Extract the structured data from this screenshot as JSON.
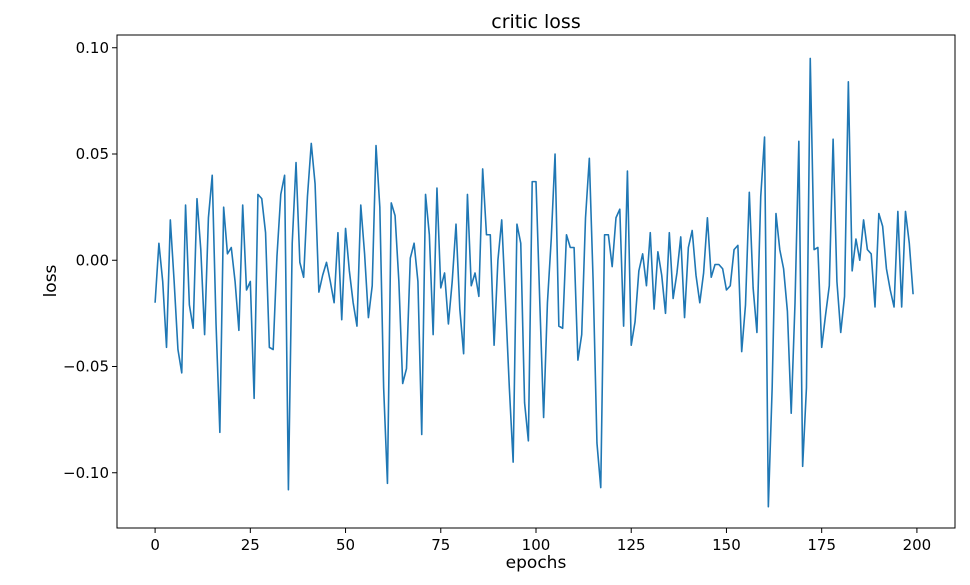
{
  "chart_data": {
    "type": "line",
    "title": "critic loss",
    "xlabel": "epochs",
    "ylabel": "loss",
    "xlim": [
      -10,
      210
    ],
    "ylim": [
      -0.126,
      0.106
    ],
    "grid": false,
    "x_ticks": [
      0,
      25,
      50,
      75,
      100,
      125,
      150,
      175,
      200
    ],
    "y_ticks": [
      -0.1,
      -0.05,
      0.0,
      0.05,
      0.1
    ],
    "x_tick_labels": [
      "0",
      "25",
      "50",
      "75",
      "100",
      "125",
      "150",
      "175",
      "200"
    ],
    "y_tick_labels": [
      "−0.10",
      "−0.05",
      "0.00",
      "0.05",
      "0.10"
    ],
    "series_color": "#1f77b4",
    "x_start": 0,
    "x_step": 1,
    "values": [
      -0.02,
      0.008,
      -0.01,
      -0.041,
      0.019,
      -0.01,
      -0.042,
      -0.053,
      0.026,
      -0.021,
      -0.032,
      0.029,
      0.005,
      -0.035,
      0.02,
      0.04,
      -0.03,
      -0.081,
      0.025,
      0.003,
      0.006,
      -0.01,
      -0.033,
      0.026,
      -0.014,
      -0.01,
      -0.065,
      0.031,
      0.029,
      0.013,
      -0.041,
      -0.042,
      0.002,
      0.031,
      0.04,
      -0.108,
      0.008,
      0.046,
      -0.001,
      -0.008,
      0.03,
      0.055,
      0.036,
      -0.015,
      -0.007,
      -0.001,
      -0.01,
      -0.02,
      0.013,
      -0.028,
      0.015,
      -0.005,
      -0.02,
      -0.031,
      0.026,
      0.003,
      -0.027,
      -0.012,
      0.054,
      0.025,
      -0.06,
      -0.105,
      0.027,
      0.021,
      -0.01,
      -0.058,
      -0.051,
      0.001,
      0.008,
      -0.01,
      -0.082,
      0.031,
      0.012,
      -0.035,
      0.034,
      -0.013,
      -0.006,
      -0.03,
      -0.01,
      0.017,
      -0.023,
      -0.044,
      0.031,
      -0.012,
      -0.006,
      -0.017,
      0.043,
      0.012,
      0.012,
      -0.04,
      0.0,
      0.019,
      -0.02,
      -0.06,
      -0.095,
      0.017,
      0.008,
      -0.067,
      -0.085,
      0.037,
      0.037,
      -0.02,
      -0.074,
      -0.02,
      0.01,
      0.05,
      -0.031,
      -0.032,
      0.012,
      0.006,
      0.006,
      -0.047,
      -0.035,
      0.02,
      0.048,
      -0.01,
      -0.086,
      -0.107,
      0.012,
      0.012,
      -0.003,
      0.02,
      0.024,
      -0.031,
      0.042,
      -0.04,
      -0.029,
      -0.005,
      0.003,
      -0.012,
      0.013,
      -0.023,
      0.004,
      -0.007,
      -0.025,
      0.013,
      -0.018,
      -0.006,
      0.011,
      -0.027,
      0.006,
      0.014,
      -0.007,
      -0.02,
      -0.006,
      0.02,
      -0.008,
      -0.002,
      -0.002,
      -0.004,
      -0.014,
      -0.012,
      0.005,
      0.007,
      -0.043,
      -0.021,
      0.032,
      -0.013,
      -0.034,
      0.03,
      0.058,
      -0.116,
      -0.06,
      0.022,
      0.005,
      -0.004,
      -0.024,
      -0.072,
      -0.02,
      0.056,
      -0.097,
      -0.06,
      0.095,
      0.005,
      0.006,
      -0.041,
      -0.026,
      -0.012,
      0.057,
      -0.01,
      -0.034,
      -0.017,
      0.084,
      -0.005,
      0.01,
      0.0,
      0.019,
      0.005,
      0.003,
      -0.022,
      0.022,
      0.016,
      -0.004,
      -0.014,
      -0.022,
      0.023,
      -0.022,
      0.023,
      0.008,
      -0.016
    ]
  }
}
